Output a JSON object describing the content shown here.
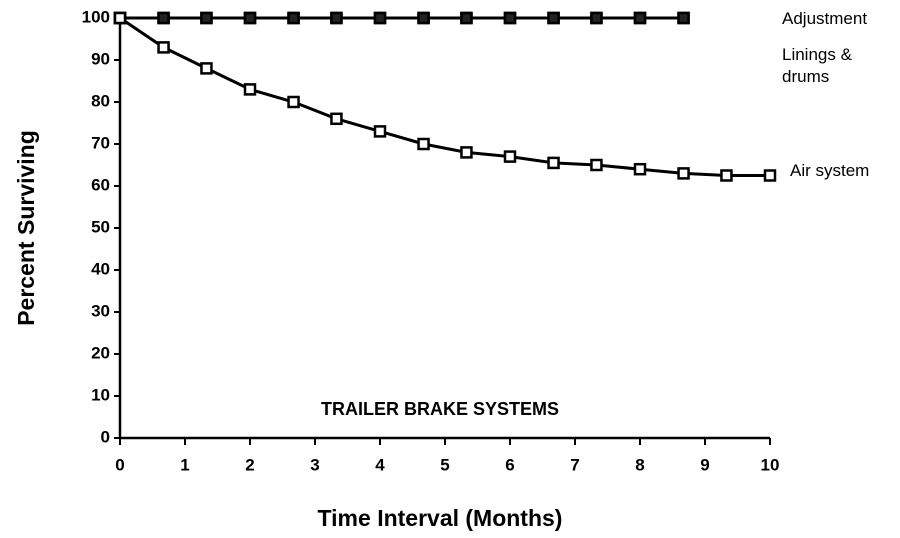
{
  "chart_data": {
    "type": "line",
    "annotation": "TRAILER BRAKE SYSTEMS",
    "x_label": "Time Interval (Months)",
    "y_label": "Percent Surviving",
    "x": [
      0,
      0.67,
      1.33,
      2,
      2.67,
      3.33,
      4,
      4.67,
      5.33,
      6,
      6.67,
      7.33,
      8,
      8.67,
      9.33,
      10
    ],
    "series": [
      {
        "name": "Adjustment",
        "color": "#000000",
        "values": [
          100,
          100,
          100,
          100,
          100,
          100,
          100,
          100,
          100,
          100,
          100,
          100,
          100,
          100,
          null,
          null
        ]
      },
      {
        "name": "Linings & drums",
        "color": "#000000",
        "values": [
          100,
          100,
          100,
          100,
          100,
          100,
          100,
          100,
          100,
          100,
          100,
          100,
          100,
          100,
          null,
          null
        ]
      },
      {
        "name": "Air system",
        "color": "#000000",
        "values": [
          100,
          93,
          88,
          83,
          80,
          76,
          73,
          70,
          68,
          67,
          65.5,
          65,
          64,
          63,
          62.5,
          62.5
        ]
      }
    ],
    "xlim": [
      0,
      10
    ],
    "xticks": [
      0,
      1,
      2,
      3,
      4,
      5,
      6,
      7,
      8,
      9,
      10
    ],
    "ylim": [
      0,
      100
    ],
    "yticks": [
      0,
      10,
      20,
      30,
      40,
      50,
      60,
      70,
      80,
      90,
      100
    ],
    "grid": false
  }
}
